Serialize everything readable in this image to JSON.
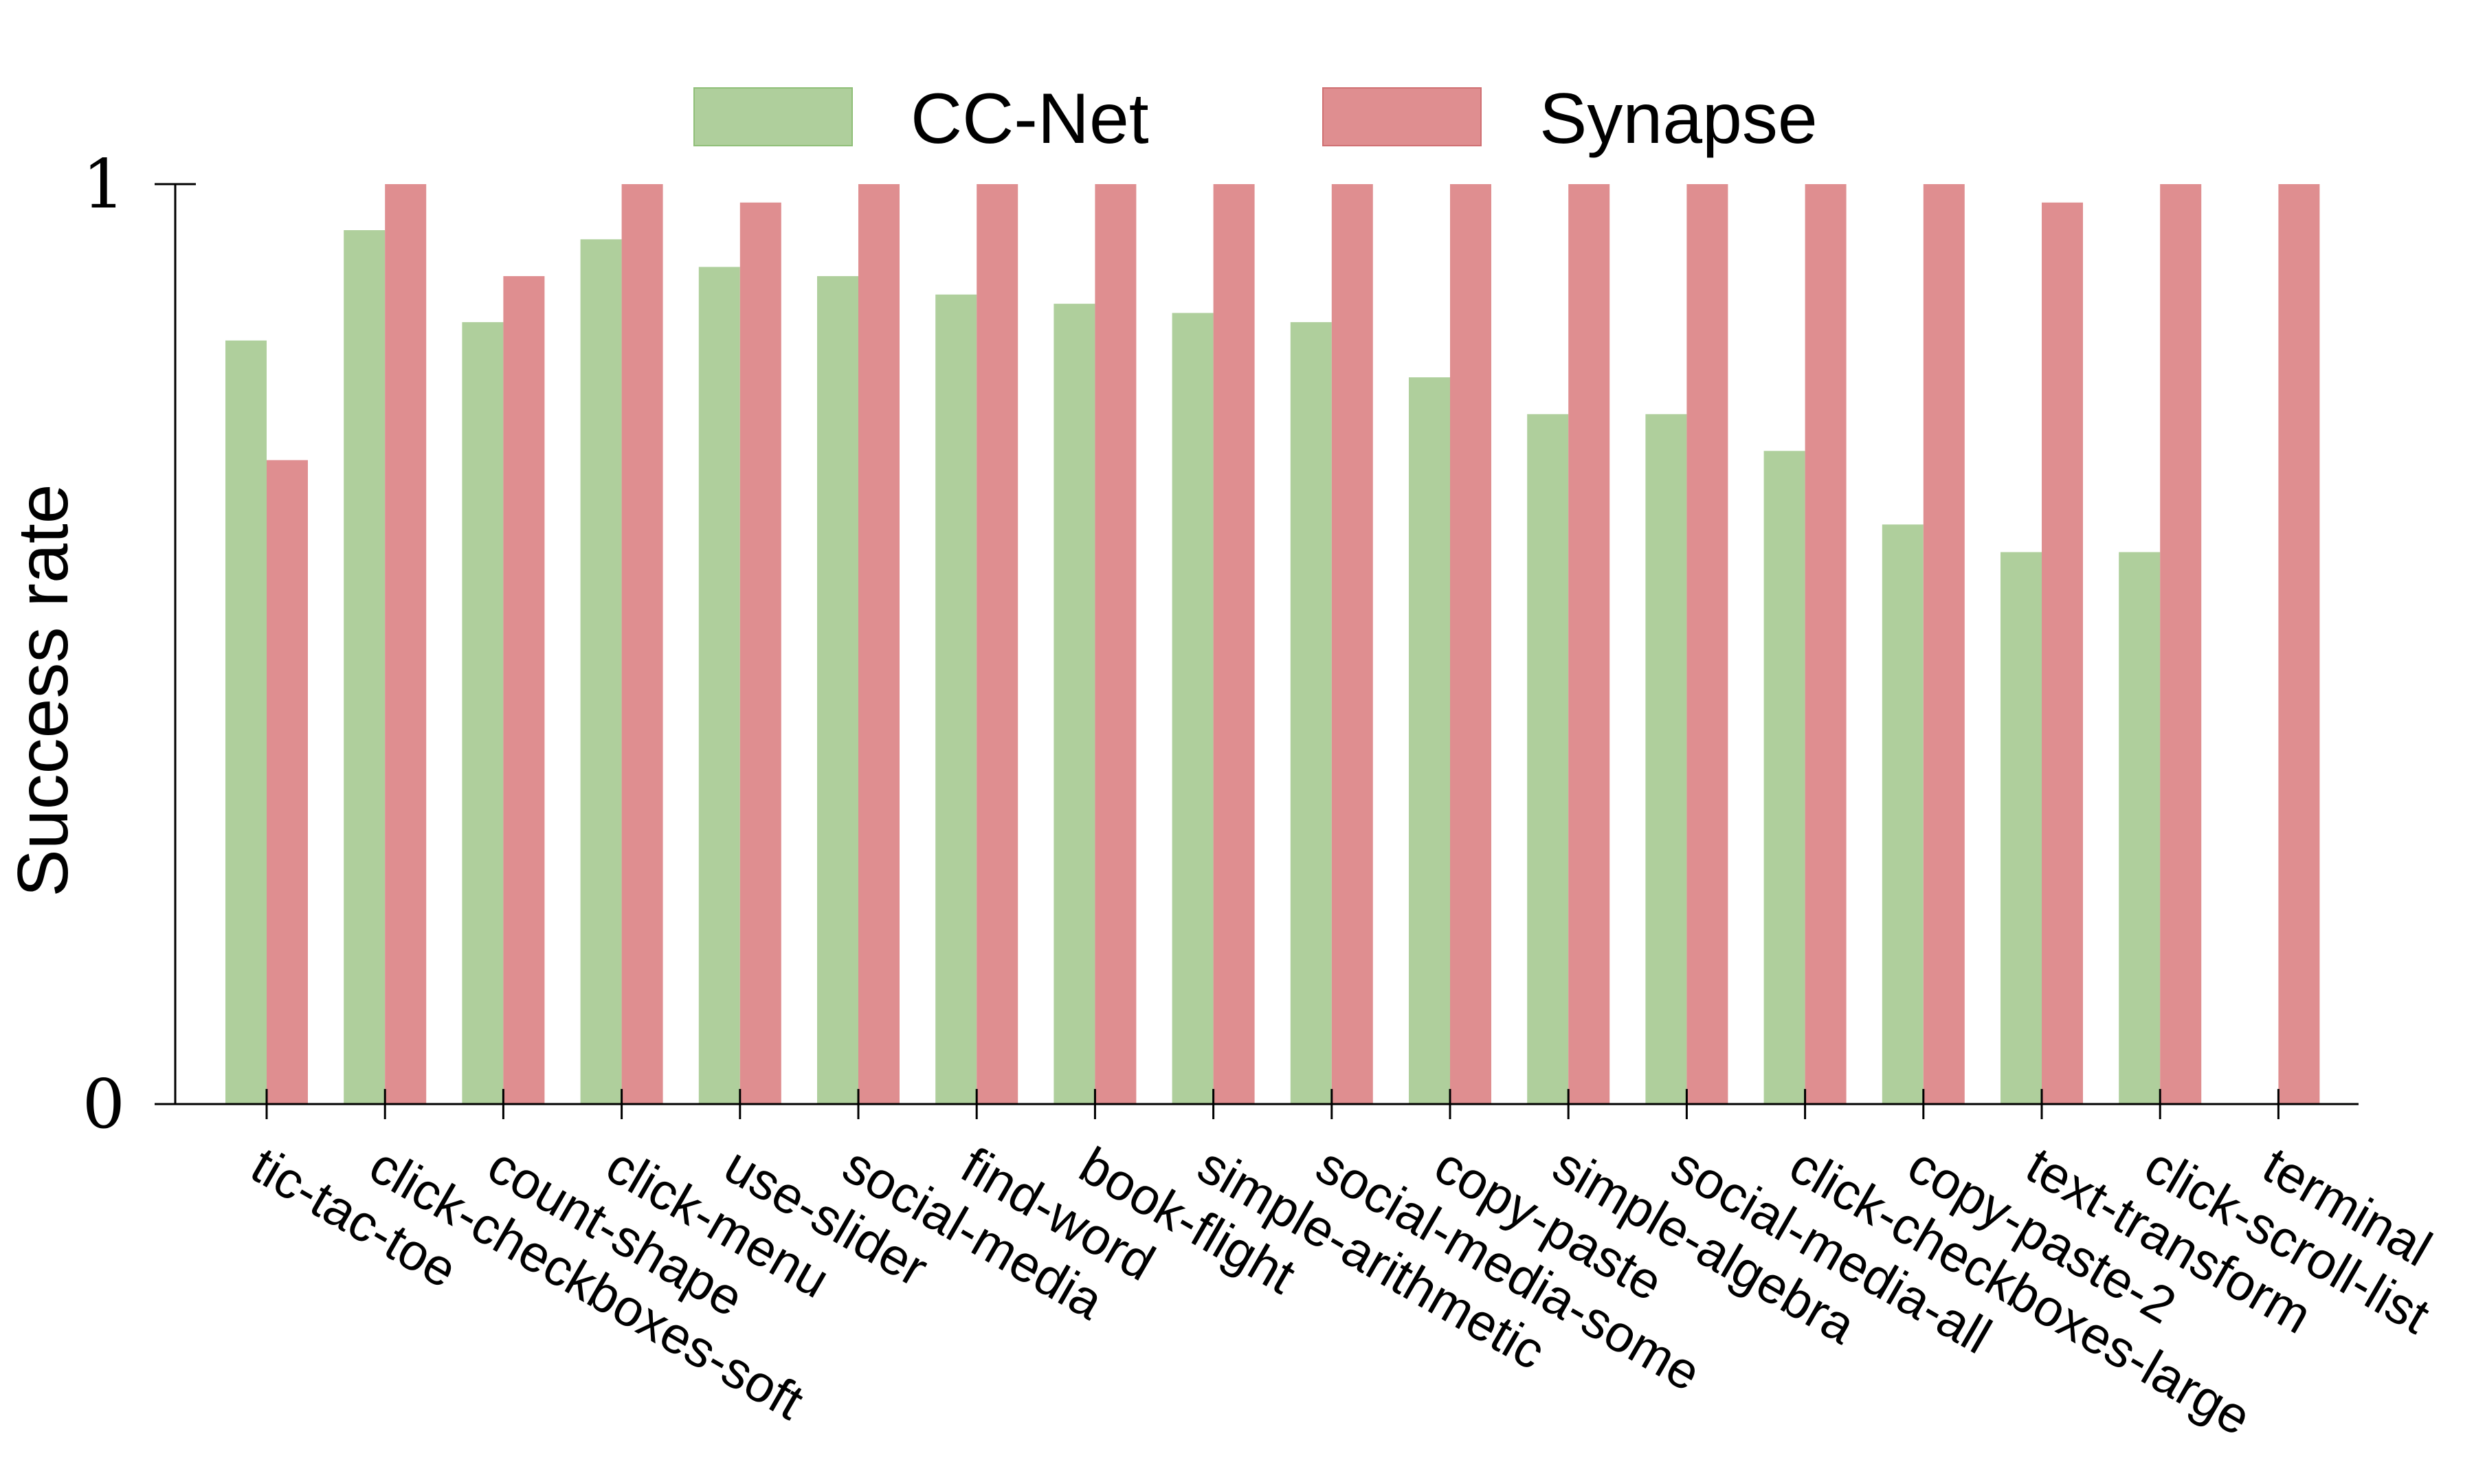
{
  "chart_data": {
    "type": "bar",
    "title": "",
    "xlabel": "",
    "ylabel": "Success rate",
    "ylim": [
      0,
      1
    ],
    "yticks": [
      "0",
      "1"
    ],
    "legend": "top-center",
    "grid": false,
    "categories": [
      "tic-tac-toe",
      "click-checkboxes-soft",
      "count-shape",
      "click-menu",
      "use-slider",
      "social-media",
      "find-word",
      "book-flight",
      "simple-arithmetic",
      "social-media-some",
      "copy-paste",
      "simple-algebra",
      "social-media-all",
      "click-checkboxes-large",
      "copy-paste-2",
      "text-transform",
      "click-scroll-list",
      "terminal"
    ],
    "series": [
      {
        "name": "CC-Net",
        "color": "#afcf9c",
        "values": [
          0.83,
          0.95,
          0.85,
          0.94,
          0.91,
          0.9,
          0.88,
          0.87,
          0.86,
          0.85,
          0.79,
          0.75,
          0.75,
          0.71,
          0.63,
          0.6,
          0.6,
          0.0
        ]
      },
      {
        "name": "Synapse",
        "color": "#df8e90",
        "values": [
          0.7,
          1.0,
          0.9,
          1.0,
          0.98,
          1.0,
          1.0,
          1.0,
          1.0,
          1.0,
          1.0,
          1.0,
          1.0,
          1.0,
          1.0,
          0.98,
          1.0,
          1.0
        ]
      }
    ]
  }
}
